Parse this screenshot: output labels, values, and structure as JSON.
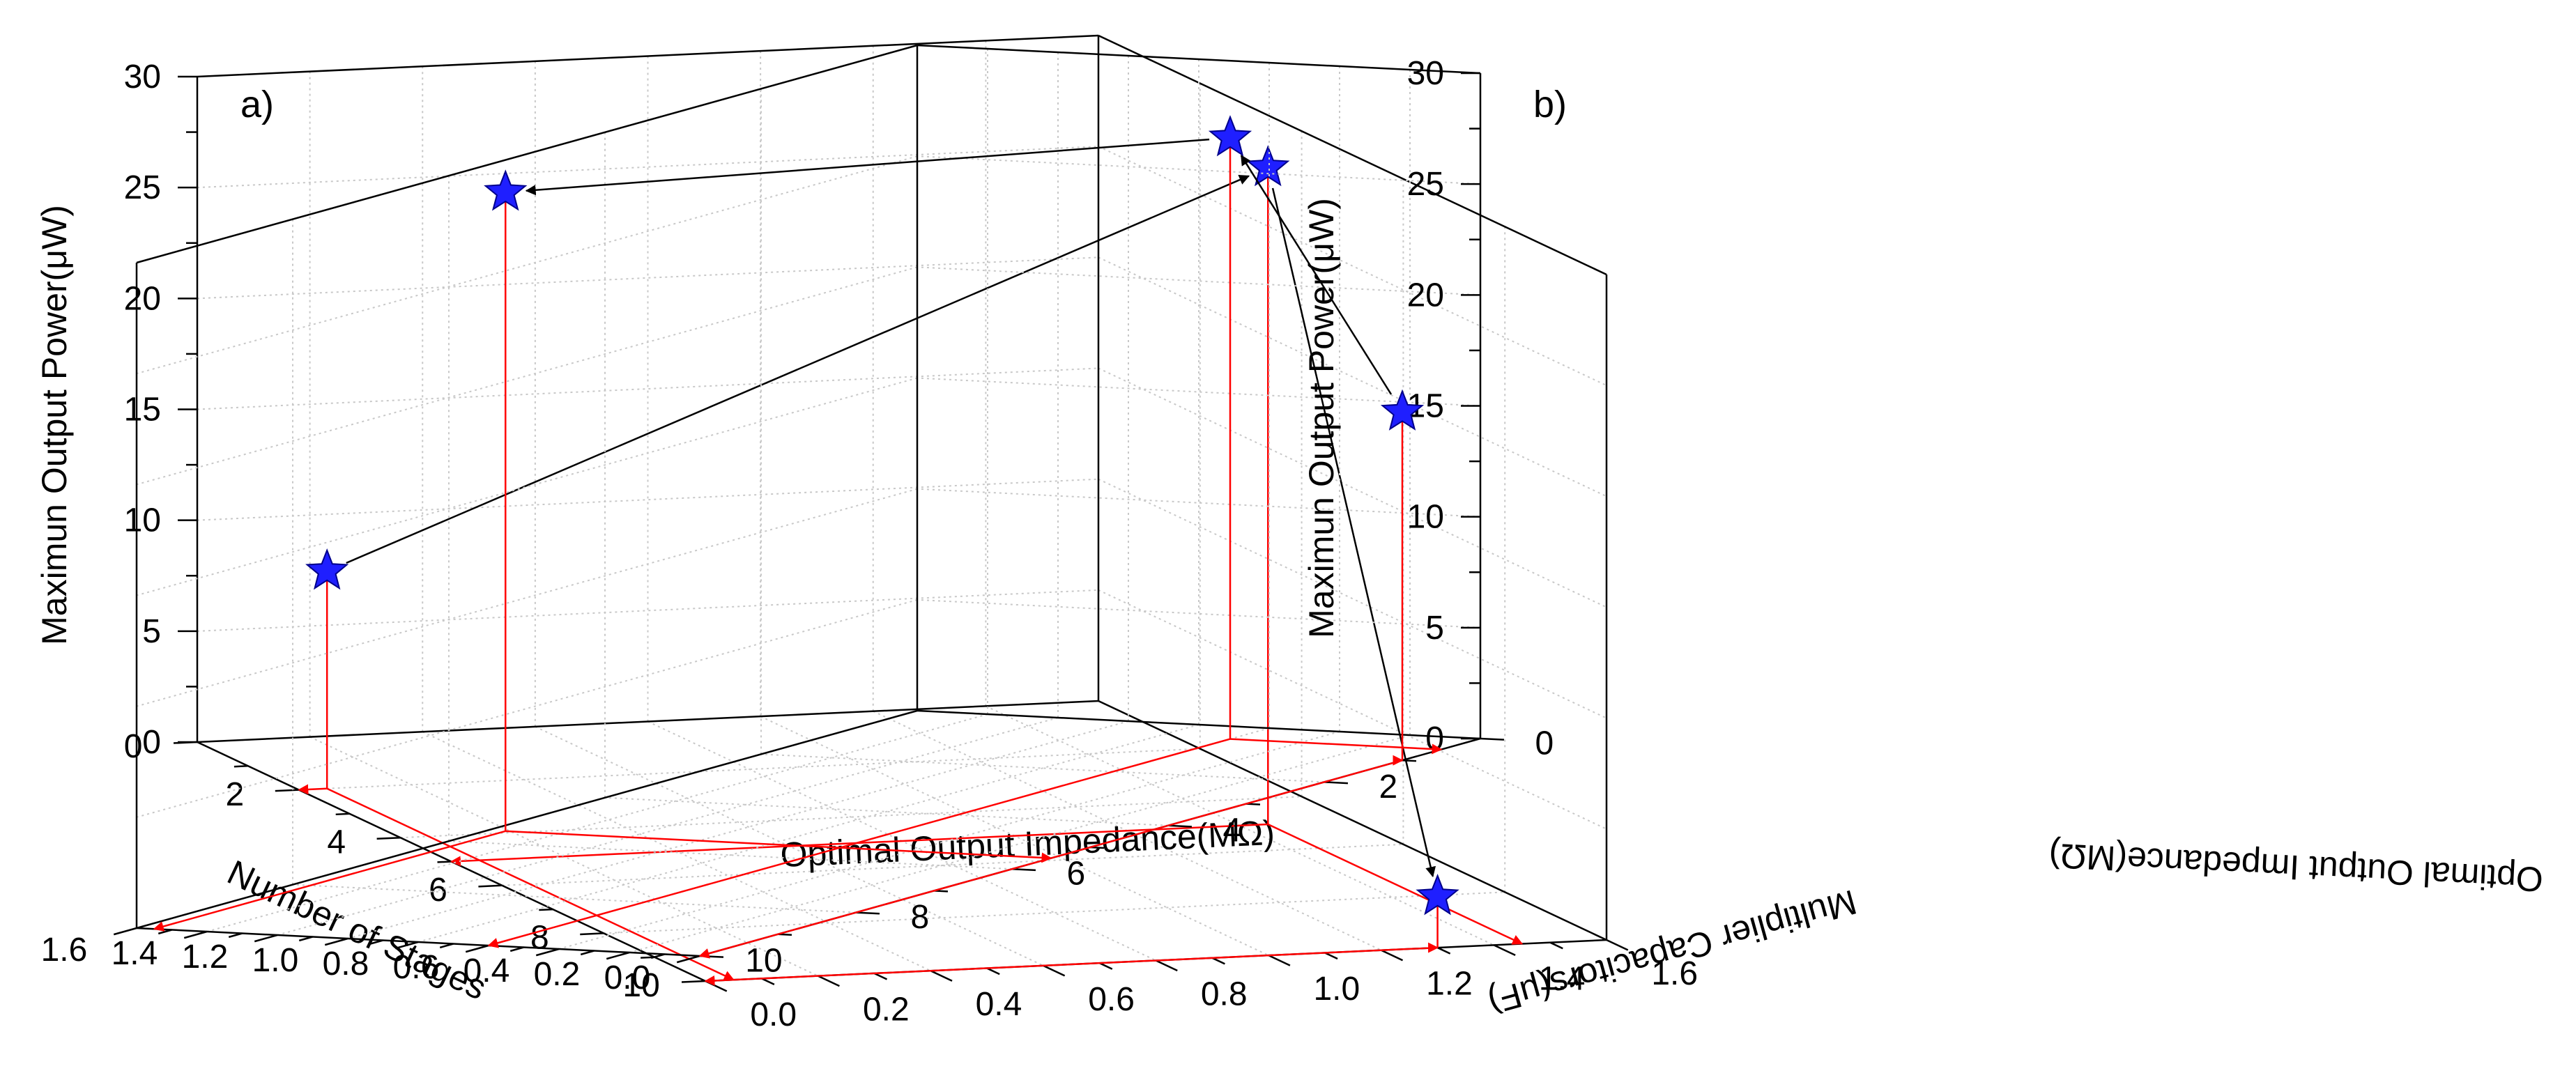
{
  "chart_data": [
    {
      "type": "scatter3d",
      "panel_label": "a)",
      "x_axis": {
        "label": "Number of Stages",
        "range": [
          0,
          10
        ],
        "ticks": [
          "0",
          "2",
          "4",
          "6",
          "8",
          "10"
        ]
      },
      "y_axis": {
        "label": "Optimal Output Impedance(MΩ)",
        "range": [
          0.0,
          1.6
        ],
        "ticks": [
          "0.0",
          "0.2",
          "0.4",
          "0.6",
          "0.8",
          "1.0",
          "1.2",
          "1.4",
          "1.6"
        ]
      },
      "z_axis": {
        "label": "Maximun Output Power(μW)",
        "range": [
          0,
          30
        ],
        "ticks": [
          "0",
          "5",
          "10",
          "15",
          "20",
          "25",
          "30"
        ]
      },
      "points": [
        {
          "x": 2,
          "y": 0.05,
          "z": 9.8
        },
        {
          "x": 5,
          "y": 1.45,
          "z": 29.6
        },
        {
          "x": 10,
          "y": 1.3,
          "z": 2.3
        }
      ],
      "marker": "star",
      "marker_color": "#1f1fff",
      "drop_line_color": "#ff0000",
      "arrow_color": "#000000",
      "grid": true
    },
    {
      "type": "scatter3d",
      "panel_label": "b)",
      "x_axis": {
        "label": "Multiplier Capacitors(μF)",
        "range": [
          0,
          10
        ],
        "ticks": [
          "0",
          "2",
          "4",
          "6",
          "8",
          "10"
        ]
      },
      "y_axis": {
        "label": "Optimal Output Impedance(MΩ)",
        "range": [
          0.0,
          1.6
        ],
        "ticks": [
          "0.0",
          "0.2",
          "0.4",
          "0.6",
          "0.8",
          "1.0",
          "1.2",
          "1.4",
          "1.6"
        ]
      },
      "z_axis": {
        "label": "Maximun Output Power(μW)",
        "range": [
          0,
          30
        ],
        "ticks": [
          "0",
          "5",
          "10",
          "15",
          "20",
          "25",
          "30"
        ]
      },
      "points": [
        {
          "x": 1,
          "y": 0.0,
          "z": 15.7
        },
        {
          "x": 0.5,
          "y": 0.6,
          "z": 27.1
        },
        {
          "x": 5.5,
          "y": 1.55,
          "z": 28.8
        }
      ],
      "marker": "star",
      "marker_color": "#1f1fff",
      "drop_line_color": "#ff0000",
      "arrow_color": "#000000",
      "grid": true
    }
  ]
}
